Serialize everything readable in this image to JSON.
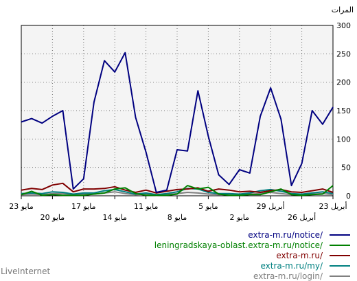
{
  "chart_data": {
    "type": "line",
    "unit_label": "المرات",
    "ylim": [
      0,
      300
    ],
    "y_ticks": [
      0,
      50,
      100,
      150,
      200,
      250,
      300
    ],
    "x_tick_labels_row1": [
      "23 مايو",
      "17 مايو",
      "11 مايو",
      "5 مايو",
      "29 أبريل",
      "23 أبريل"
    ],
    "x_tick_labels_row2": [
      "20 مايو",
      "14 مايو",
      "8 مايو",
      "2 مايو",
      "26 أبريل"
    ],
    "grid": true,
    "legend_position": "bottom-right",
    "series": [
      {
        "name": "extra-m.ru/notice/",
        "color": "#000080",
        "values": [
          130,
          136,
          128,
          140,
          150,
          12,
          30,
          165,
          238,
          218,
          252,
          138,
          77,
          6,
          10,
          81,
          79,
          185,
          105,
          37,
          20,
          46,
          40,
          140,
          190,
          135,
          18,
          57,
          150,
          126,
          156
        ]
      },
      {
        "name": "leningradskaya-oblast.extra-m.ru/notice/",
        "color": "#008000",
        "values": [
          2,
          8,
          1,
          2,
          1,
          1,
          1,
          3,
          5,
          12,
          14,
          4,
          1,
          1,
          1,
          3,
          18,
          12,
          15,
          3,
          1,
          1,
          2,
          2,
          7,
          12,
          2,
          1,
          2,
          3,
          18
        ]
      },
      {
        "name": "extra-m.ru/",
        "color": "#800000",
        "values": [
          10,
          13,
          11,
          19,
          22,
          7,
          12,
          12,
          13,
          16,
          10,
          6,
          10,
          5,
          8,
          11,
          12,
          14,
          8,
          12,
          10,
          7,
          8,
          6,
          9,
          11,
          7,
          6,
          9,
          12,
          6
        ]
      },
      {
        "name": "extra-m.ru/my/",
        "color": "#008080",
        "values": [
          4,
          5,
          4,
          7,
          6,
          3,
          5,
          5,
          9,
          11,
          7,
          3,
          5,
          2,
          4,
          7,
          13,
          12,
          6,
          4,
          4,
          3,
          5,
          9,
          11,
          8,
          4,
          3,
          5,
          7,
          4
        ]
      },
      {
        "name": "extra-m.ru/login/",
        "color": "#808080",
        "values": [
          2,
          3,
          2,
          4,
          4,
          2,
          3,
          3,
          5,
          7,
          4,
          2,
          3,
          1,
          2,
          4,
          6,
          5,
          3,
          2,
          2,
          2,
          3,
          4,
          6,
          4,
          2,
          2,
          3,
          4,
          2
        ]
      }
    ]
  },
  "credit": "LiveInternet"
}
